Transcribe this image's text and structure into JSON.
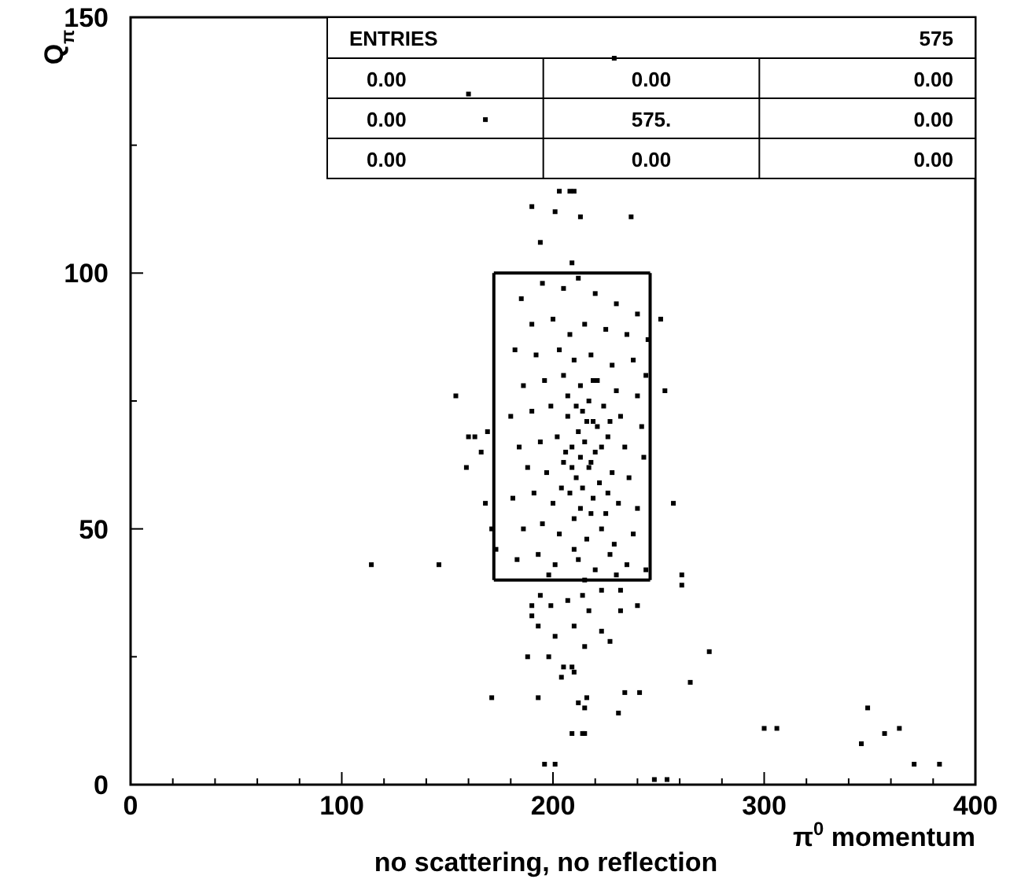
{
  "chart_data": {
    "type": "scatter",
    "title": "no scattering, no reflection",
    "xlabel": "π$^{0}$ momentum",
    "ylabel": "Q$_{π}$",
    "xlim": [
      0,
      400
    ],
    "ylim": [
      0,
      150
    ],
    "xticks": [
      0,
      {
        "value": 20,
        "label": null
      },
      {
        "value": 40,
        "label": null
      },
      {
        "value": 60,
        "label": null
      },
      {
        "value": 80,
        "label": null
      },
      100,
      {
        "value": 120,
        "label": null
      },
      {
        "value": 140,
        "label": null
      },
      {
        "value": 160,
        "label": null
      },
      {
        "value": 180,
        "label": null
      },
      200,
      {
        "value": 220,
        "label": null
      },
      {
        "value": 240,
        "label": null
      },
      {
        "value": 260,
        "label": null
      },
      {
        "value": 280,
        "label": null
      },
      300,
      {
        "value": 320,
        "label": null
      },
      {
        "value": 340,
        "label": null
      },
      {
        "value": 360,
        "label": null
      },
      {
        "value": 380,
        "label": null
      },
      400
    ],
    "yticks": [
      0,
      {
        "value": 25,
        "label": null
      },
      50,
      {
        "value": 75,
        "label": null
      },
      100,
      {
        "value": 125,
        "label": null
      },
      150
    ],
    "grid": false,
    "marker": "square",
    "annotations": [
      "ENTRIES",
      "575",
      "0.00",
      "0.00",
      "0.00",
      "0.00",
      "575.",
      "0.00",
      "0.00",
      "0.00",
      "0.00"
    ],
    "series": [
      {
        "color": "#000000",
        "x": [
          229,
          160,
          168,
          208,
          203,
          210,
          190,
          201,
          213,
          237,
          194,
          209,
          251,
          245,
          154,
          253,
          160,
          163,
          169,
          166,
          159,
          257,
          168,
          171,
          173,
          114,
          146,
          194,
          199,
          190,
          190,
          207,
          214,
          223,
          232,
          240,
          217,
          232,
          193,
          201,
          210,
          223,
          227,
          215,
          188,
          198,
          205,
          209,
          210,
          204,
          171,
          193,
          212,
          216,
          234,
          241,
          215,
          231,
          209,
          214,
          196,
          248,
          261,
          261,
          274,
          265,
          300,
          306,
          346,
          357,
          364,
          371,
          383,
          215,
          201,
          254,
          349,
          185,
          195,
          205,
          212,
          220,
          230,
          240,
          190,
          200,
          208,
          215,
          225,
          235,
          182,
          192,
          203,
          210,
          218,
          228,
          238,
          244,
          186,
          196,
          205,
          213,
          221,
          230,
          240,
          180,
          190,
          199,
          207,
          214,
          219,
          224,
          232,
          242,
          184,
          194,
          202,
          209,
          215,
          220,
          226,
          234,
          243,
          188,
          197,
          205,
          211,
          217,
          222,
          228,
          236,
          181,
          191,
          200,
          208,
          213,
          219,
          225,
          231,
          240,
          186,
          195,
          203,
          210,
          216,
          223,
          229,
          238,
          183,
          193,
          201,
          212,
          220,
          227,
          235,
          244,
          198,
          215,
          230,
          207,
          217,
          212,
          218,
          221,
          214,
          209,
          223,
          216,
          206,
          226,
          211,
          219,
          204,
          227,
          213,
          218,
          210
        ],
        "values": [
          142,
          135,
          130,
          116,
          116,
          116,
          113,
          112,
          111,
          111,
          106,
          102,
          91,
          87,
          76,
          77,
          68,
          68,
          69,
          65,
          62,
          55,
          55,
          50,
          46,
          43,
          43,
          37,
          35,
          35,
          33,
          36,
          37,
          38,
          38,
          35,
          34,
          34,
          31,
          29,
          31,
          30,
          28,
          27,
          25,
          25,
          23,
          23,
          22,
          21,
          17,
          17,
          16,
          17,
          18,
          18,
          15,
          14,
          10,
          10,
          4,
          1,
          41,
          39,
          26,
          20,
          11,
          11,
          8,
          10,
          11,
          4,
          4,
          10,
          4,
          1,
          15,
          95,
          98,
          97,
          99,
          96,
          94,
          92,
          90,
          91,
          88,
          90,
          89,
          88,
          85,
          84,
          85,
          83,
          84,
          82,
          83,
          80,
          78,
          79,
          80,
          78,
          79,
          77,
          76,
          72,
          73,
          74,
          72,
          73,
          71,
          74,
          72,
          70,
          66,
          67,
          68,
          66,
          67,
          65,
          68,
          66,
          64,
          62,
          61,
          63,
          60,
          62,
          59,
          61,
          60,
          56,
          57,
          55,
          57,
          54,
          56,
          53,
          55,
          54,
          50,
          51,
          49,
          52,
          48,
          50,
          47,
          49,
          44,
          45,
          43,
          44,
          42,
          45,
          43,
          42,
          41,
          40,
          41,
          76,
          75,
          69,
          63,
          70,
          58,
          62,
          66,
          71,
          65,
          57,
          74,
          79,
          58,
          71,
          64,
          53,
          46
        ]
      },
      {
        "type": "line",
        "marker": "none",
        "color": "#000000",
        "x": [
          172,
          246
        ],
        "values": [
          40,
          40
        ]
      },
      {
        "type": "line",
        "marker": "none",
        "color": "#000000",
        "x": [
          172,
          246
        ],
        "values": [
          100,
          100
        ]
      },
      {
        "type": "line",
        "marker": "none",
        "color": "#000000",
        "x": [
          172,
          172
        ],
        "values": [
          40,
          100
        ]
      },
      {
        "type": "line",
        "marker": "none",
        "color": "#000000",
        "x": [
          246,
          246
        ],
        "values": [
          40,
          100
        ]
      }
    ]
  }
}
